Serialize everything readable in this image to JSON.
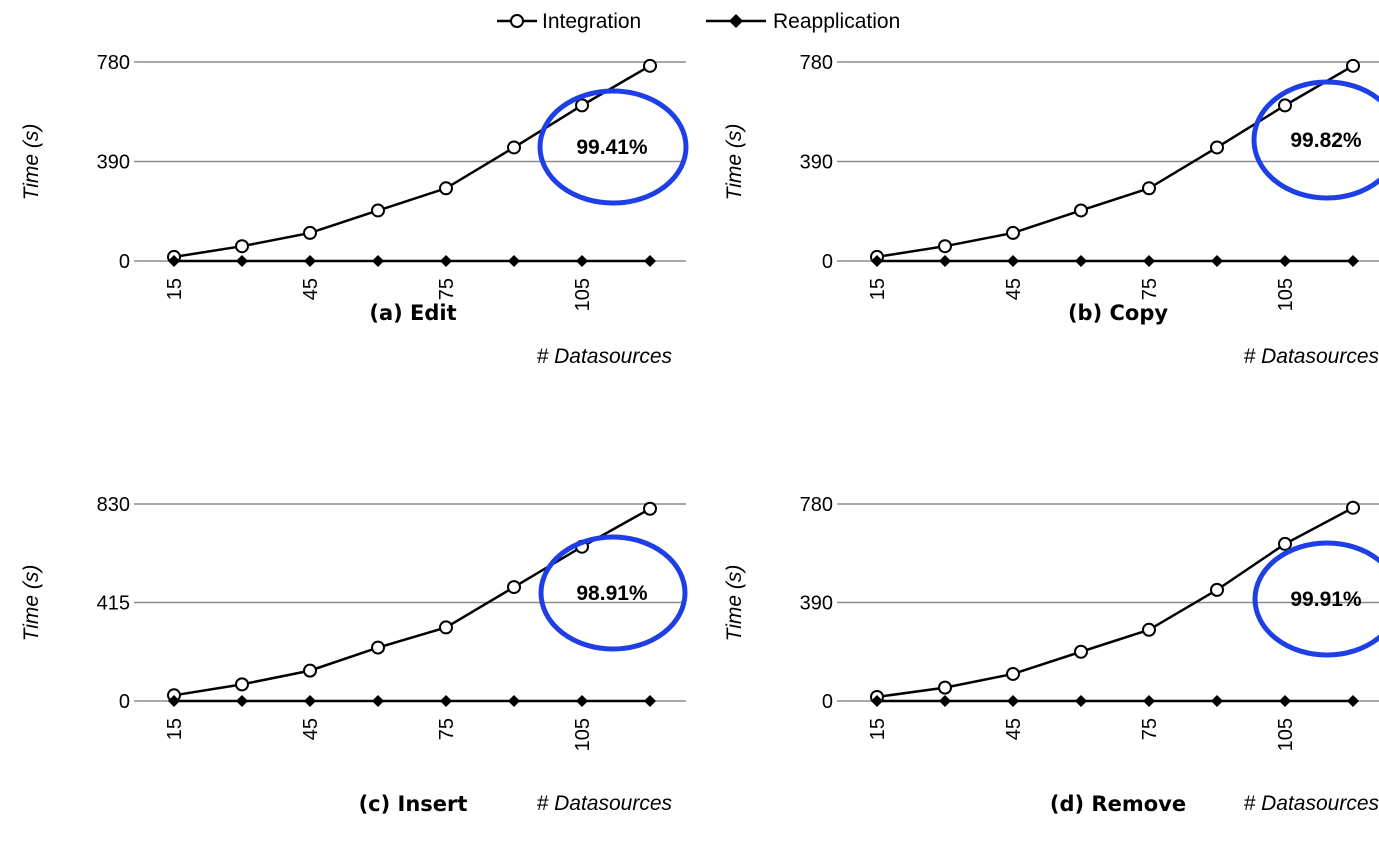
{
  "colors": {
    "line": "#000000",
    "gridline": "#8c8c8c",
    "annotation_circle": "#1f3fe6"
  },
  "legend": {
    "entries": [
      {
        "label": "Integration",
        "marker": "open-circle"
      },
      {
        "label": "Reapplication",
        "marker": "filled-diamond"
      }
    ]
  },
  "chart_data": [
    {
      "type": "line",
      "caption": "(a) Edit",
      "xlabel": "# Datasources",
      "ylabel": "Time (s)",
      "x": [
        15,
        30,
        45,
        60,
        75,
        90,
        105,
        120
      ],
      "x_tick_labels": [
        "15",
        "45",
        "75",
        "105"
      ],
      "ylim": [
        0,
        780
      ],
      "y_ticks": [
        0,
        390,
        780
      ],
      "grid": true,
      "series": [
        {
          "name": "Integration",
          "values": [
            16,
            58,
            110,
            198,
            285,
            445,
            610,
            765
          ]
        },
        {
          "name": "Reapplication",
          "values": [
            0,
            0,
            0,
            0,
            0,
            0,
            0,
            0
          ]
        }
      ],
      "annotation": "99.41%"
    },
    {
      "type": "line",
      "caption": "(b) Copy",
      "xlabel": "# Datasources",
      "ylabel": "Time (s)",
      "x": [
        15,
        30,
        45,
        60,
        75,
        90,
        105,
        120
      ],
      "x_tick_labels": [
        "15",
        "45",
        "75",
        "105"
      ],
      "ylim": [
        0,
        780
      ],
      "y_ticks": [
        0,
        390,
        780
      ],
      "grid": true,
      "series": [
        {
          "name": "Integration",
          "values": [
            16,
            58,
            110,
            198,
            285,
            445,
            610,
            765
          ]
        },
        {
          "name": "Reapplication",
          "values": [
            0,
            0,
            0,
            0,
            0,
            0,
            0,
            0
          ]
        }
      ],
      "annotation": "99.82%"
    },
    {
      "type": "line",
      "caption": "(c) Insert",
      "xlabel": "# Datasources",
      "ylabel": "Time (s)",
      "x": [
        15,
        30,
        45,
        60,
        75,
        90,
        105,
        120
      ],
      "x_tick_labels": [
        "15",
        "45",
        "75",
        "105"
      ],
      "ylim": [
        0,
        830
      ],
      "y_ticks": [
        0,
        415,
        830
      ],
      "grid": true,
      "series": [
        {
          "name": "Integration",
          "values": [
            24,
            70,
            128,
            225,
            310,
            480,
            650,
            810
          ]
        },
        {
          "name": "Reapplication",
          "values": [
            0,
            0,
            0,
            0,
            0,
            0,
            0,
            0
          ]
        }
      ],
      "annotation": "98.91%"
    },
    {
      "type": "line",
      "caption": "(d) Remove",
      "xlabel": "# Datasources",
      "ylabel": "Time (s)",
      "x": [
        15,
        30,
        45,
        60,
        75,
        90,
        105,
        120
      ],
      "x_tick_labels": [
        "15",
        "45",
        "75",
        "105"
      ],
      "ylim": [
        0,
        780
      ],
      "y_ticks": [
        0,
        390,
        780
      ],
      "grid": true,
      "series": [
        {
          "name": "Integration",
          "values": [
            16,
            53,
            107,
            195,
            282,
            440,
            622,
            765
          ]
        },
        {
          "name": "Reapplication",
          "values": [
            0,
            0,
            0,
            0,
            0,
            0,
            0,
            0
          ]
        }
      ],
      "annotation": "99.91%"
    }
  ]
}
